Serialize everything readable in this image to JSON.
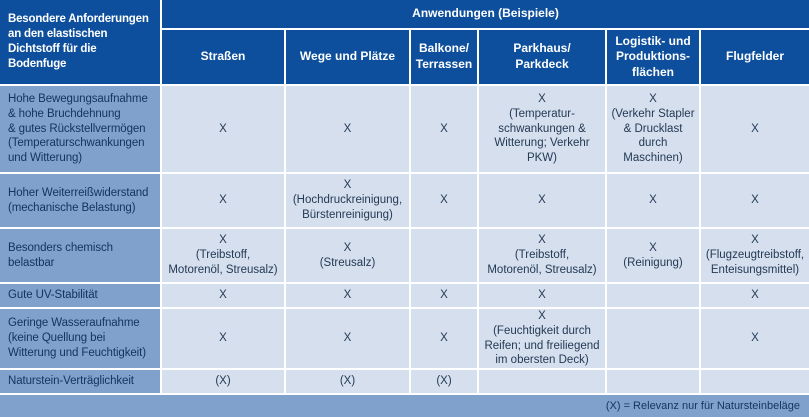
{
  "table": {
    "corner_header": "Besondere Anforderungen\nan den elastischen\nDichtstoff für die\nBodenfuge",
    "group_header": "Anwendungen (Beispiele)",
    "columns": [
      "Straßen",
      "Wege und Plätze",
      "Balkone/\nTerrassen",
      "Parkhaus/\nParkdeck",
      "Logistik- und\nProduktions-\nflächen",
      "Flugfelder"
    ],
    "rows": [
      {
        "label": "Hohe Bewegungsaufnahme\n& hohe Bruchdehnung\n& gutes Rückstellvermögen\n(Temperaturschwankungen\nund Witterung)",
        "cells": [
          "X",
          "X",
          "X",
          "X\n(Temperatur-\nschwankungen &\nWitterung; Verkehr\nPKW)",
          "X\n(Verkehr Stapler\n& Drucklast\ndurch\nMaschinen)",
          "X"
        ]
      },
      {
        "label": "Hoher Weiterreißwiderstand\n(mechanische Belastung)",
        "cells": [
          "X",
          "X\n(Hochdruckreinigung,\nBürstenreinigung)",
          "X",
          "X",
          "X",
          "X"
        ]
      },
      {
        "label": "Besonders chemisch\nbelastbar",
        "cells": [
          "X\n(Treibstoff,\nMotorenöl, Streusalz)",
          "X\n(Streusalz)",
          "",
          "X\n(Treibstoff,\nMotorenöl, Streusalz)",
          "X\n(Reinigung)",
          "X\n(Flugzeugtreibstoff,\nEnteisungsmittel)"
        ]
      },
      {
        "label": "Gute UV-Stabilität",
        "cells": [
          "X",
          "X",
          "X",
          "X",
          "",
          "X"
        ]
      },
      {
        "label": "Geringe Wasseraufnahme\n(keine Quellung bei\nWitterung und Feuchtigkeit)",
        "cells": [
          "X",
          "X",
          "X",
          "X\n(Feuchtigkeit durch\nReifen; und freiliegend\nim obersten Deck)",
          "",
          "X"
        ]
      },
      {
        "label": "Naturstein-Verträglichkeit",
        "cells": [
          "(X)",
          "(X)",
          "(X)",
          "",
          "",
          ""
        ]
      }
    ],
    "footnote": "(X) = Relevanz nur für Natursteinbeläge"
  },
  "colors": {
    "header_blue": "#0d4f9c",
    "label_blue": "#7fa1cc",
    "cell_blue": "#d5dfee",
    "divider": "#ffffff",
    "text_dark": "#14335e",
    "header_text": "#ffffff"
  }
}
